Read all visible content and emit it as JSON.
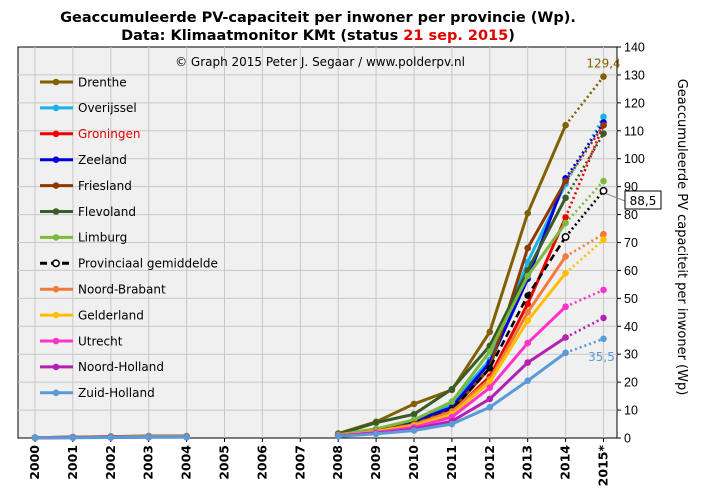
{
  "title": {
    "line1": "Geaccumuleerde PV-capaciteit per inwoner per provincie (Wp).",
    "line2_prefix": "Data: Klimaatmonitor KMt (status ",
    "line2_highlight": "21 sep. 2015",
    "line2_suffix": ")"
  },
  "credit": "© Graph 2015 Peter J. Segaar / www.polderpv.nl",
  "colors": {
    "plot_bg": "#f0f0f0",
    "grid": "#c8c8c8",
    "highlight": "#e00000"
  },
  "chart_data": {
    "type": "line",
    "title": "Geaccumuleerde PV-capaciteit per inwoner per provincie (Wp). Data: Klimaatmonitor KMt (status 21 sep. 2015)",
    "xlabel": "",
    "ylabel": "Geaccumuleerde PV capaciteit per inwoner (Wp)",
    "categories": [
      "2000",
      "2001",
      "2002",
      "2003",
      "2004",
      "2005",
      "2006",
      "2007",
      "2008",
      "2009",
      "2010",
      "2011",
      "2012",
      "2013",
      "2014",
      "2015*"
    ],
    "ylim": [
      0,
      140
    ],
    "yticks": [
      "0",
      "10",
      "20",
      "30",
      "40",
      "50",
      "60",
      "70",
      "80",
      "90",
      "100",
      "110",
      "120",
      "130",
      "140"
    ],
    "y_axis_side": "right",
    "grid": true,
    "legend_position": "top-left",
    "dotted_last_segment": true,
    "series": [
      {
        "name": "Drenthe",
        "color": "#806000",
        "values": [
          0.1,
          0.3,
          0.5,
          0.7,
          0.7,
          null,
          null,
          null,
          1.6,
          5.8,
          12.2,
          17.2,
          38.0,
          80.5,
          112.0,
          129.4
        ]
      },
      {
        "name": "Overijssel",
        "color": "#1ab2e8",
        "values": [
          0.1,
          0.3,
          0.4,
          0.6,
          0.6,
          null,
          null,
          null,
          1.1,
          3.0,
          5.5,
          12.5,
          28.0,
          63.0,
          91.0,
          115.0
        ]
      },
      {
        "name": "Groningen",
        "color": "#ee0000",
        "values": [
          0.1,
          0.2,
          0.3,
          0.5,
          0.5,
          null,
          null,
          null,
          1.0,
          2.5,
          4.5,
          9.0,
          22.0,
          48.0,
          79.0,
          112.0
        ]
      },
      {
        "name": "Zeeland",
        "color": "#0000dd",
        "values": [
          0.1,
          0.2,
          0.4,
          0.6,
          0.6,
          null,
          null,
          null,
          1.2,
          3.2,
          6.0,
          11.0,
          27.0,
          57.0,
          93.0,
          113.0
        ]
      },
      {
        "name": "Friesland",
        "color": "#8b3a00",
        "values": [
          0.1,
          0.2,
          0.3,
          0.5,
          0.5,
          null,
          null,
          null,
          1.0,
          2.8,
          5.0,
          10.0,
          25.0,
          68.0,
          92.0,
          112.0
        ]
      },
      {
        "name": "Flevoland",
        "color": "#3a5a28",
        "values": [
          0.1,
          0.3,
          0.5,
          0.6,
          0.6,
          null,
          null,
          null,
          1.3,
          5.5,
          8.5,
          17.5,
          33.0,
          60.0,
          86.0,
          109.0
        ]
      },
      {
        "name": "Limburg",
        "color": "#7cba3c",
        "values": [
          0.1,
          0.2,
          0.4,
          0.6,
          0.6,
          null,
          null,
          null,
          1.1,
          3.3,
          6.5,
          13.0,
          31.0,
          58.0,
          77.0,
          92.0
        ]
      },
      {
        "name": "Provinciaal gemiddelde",
        "color": "#000000",
        "dashed": true,
        "values": [
          0.1,
          0.2,
          0.3,
          0.4,
          0.4,
          null,
          null,
          null,
          0.9,
          2.5,
          5.0,
          10.0,
          25.0,
          51.0,
          72.0,
          88.5
        ]
      },
      {
        "name": "Noord-Brabant",
        "color": "#f07c3c",
        "values": [
          0.1,
          0.2,
          0.3,
          0.4,
          0.4,
          null,
          null,
          null,
          0.9,
          2.4,
          4.8,
          9.5,
          21.0,
          45.0,
          65.0,
          73.0
        ]
      },
      {
        "name": "Gelderland",
        "color": "#ffbf00",
        "values": [
          0.1,
          0.2,
          0.3,
          0.4,
          0.4,
          null,
          null,
          null,
          0.9,
          2.3,
          4.3,
          8.5,
          20.0,
          42.0,
          59.0,
          71.0
        ]
      },
      {
        "name": "Utrecht",
        "color": "#ff33cc",
        "values": [
          0.1,
          0.2,
          0.3,
          0.4,
          0.4,
          null,
          null,
          null,
          0.8,
          2.0,
          3.8,
          7.5,
          18.0,
          34.0,
          47.0,
          53.0
        ]
      },
      {
        "name": "Noord-Holland",
        "color": "#b420b4",
        "values": [
          0.1,
          0.2,
          0.2,
          0.3,
          0.3,
          null,
          null,
          null,
          0.7,
          1.7,
          3.2,
          6.0,
          14.0,
          27.0,
          36.0,
          43.0
        ]
      },
      {
        "name": "Zuid-Holland",
        "color": "#5a9ad8",
        "values": [
          0.1,
          0.1,
          0.2,
          0.3,
          0.3,
          null,
          null,
          null,
          0.6,
          1.5,
          2.7,
          5.0,
          11.0,
          20.5,
          30.5,
          35.5
        ]
      }
    ],
    "annotations": [
      {
        "text": "129,4",
        "series": "Drenthe",
        "color": "#806000",
        "boxed": false
      },
      {
        "text": "88,5",
        "series": "Provinciaal gemiddelde",
        "color": "#000000",
        "boxed": true
      },
      {
        "text": "35,5",
        "series": "Zuid-Holland",
        "color": "#5a9ad8",
        "boxed": false
      }
    ]
  }
}
